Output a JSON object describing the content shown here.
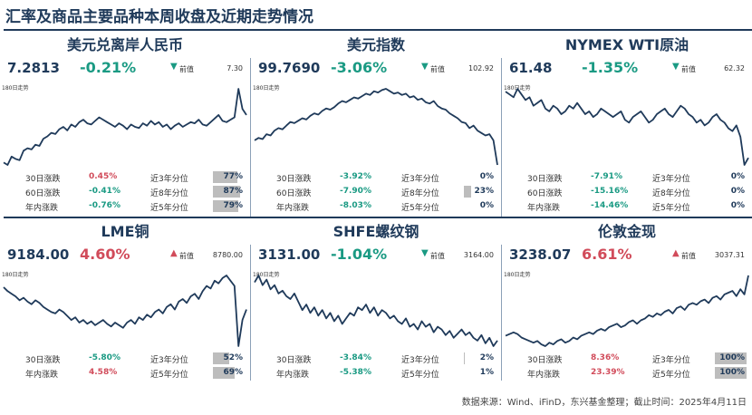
{
  "title": "汇率及商品主要品种本周收盘及近期走势情况",
  "source": "数据来源：Wind、iFinD，东兴基金整理；截止时间：2025年4月11日",
  "labels": {
    "prev": "前值",
    "chart_caption": "180日走势",
    "d30": "30日涨跌",
    "d60": "60日涨跌",
    "ytd": "年内涨跌",
    "p3y": "近3年分位",
    "p8y": "近8年分位",
    "p5y": "近5年分位"
  },
  "colors": {
    "up": "#d14b5a",
    "down": "#1a9a83",
    "line": "#1f3a5a",
    "bar": "#bdbdbd"
  },
  "panels": [
    {
      "name": "美元兑离岸人民币",
      "price": "7.2813",
      "change": "-0.21%",
      "direction": "down",
      "prev": "7.30",
      "stats": [
        {
          "label_key": "d30",
          "value": "0.45%",
          "dir": "up",
          "pct_label_key": "p3y",
          "pct": "77%",
          "fill": 0.77
        },
        {
          "label_key": "d60",
          "value": "-0.41%",
          "dir": "down",
          "pct_label_key": "p8y",
          "pct": "87%",
          "fill": 0.87
        },
        {
          "label_key": "ytd",
          "value": "-0.76%",
          "dir": "down",
          "pct_label_key": "p5y",
          "pct": "79%",
          "fill": 0.79
        }
      ]
    },
    {
      "name": "美元指数",
      "price": "99.7690",
      "change": "-3.06%",
      "direction": "down",
      "prev": "102.92",
      "stats": [
        {
          "label_key": "d30",
          "value": "-3.92%",
          "dir": "down",
          "pct_label_key": "p3y",
          "pct": "0%",
          "fill": 0
        },
        {
          "label_key": "d60",
          "value": "-7.90%",
          "dir": "down",
          "pct_label_key": "p8y",
          "pct": "23%",
          "fill": 0.23
        },
        {
          "label_key": "ytd",
          "value": "-8.03%",
          "dir": "down",
          "pct_label_key": "p5y",
          "pct": "0%",
          "fill": 0
        }
      ]
    },
    {
      "name": "NYMEX WTI原油",
      "price": "61.48",
      "change": "-1.35%",
      "direction": "down",
      "prev": "62.32",
      "stats": [
        {
          "label_key": "d30",
          "value": "-7.91%",
          "dir": "down",
          "pct_label_key": "p3y",
          "pct": "0%",
          "fill": 0
        },
        {
          "label_key": "d60",
          "value": "-15.16%",
          "dir": "down",
          "pct_label_key": "p8y",
          "pct": "0%",
          "fill": 0
        },
        {
          "label_key": "ytd",
          "value": "-14.46%",
          "dir": "down",
          "pct_label_key": "p5y",
          "pct": "0%",
          "fill": 0
        }
      ]
    },
    {
      "name": "LME铜",
      "price": "9184.00",
      "change": "4.60%",
      "direction": "up",
      "prev": "8780.00",
      "stats": [
        {
          "label_key": "d30",
          "value": "-5.80%",
          "dir": "down",
          "pct_label_key": "p3y",
          "pct": "52%",
          "fill": 0.52
        },
        {
          "label_key": "ytd",
          "value": "4.58%",
          "dir": "up",
          "pct_label_key": "p5y",
          "pct": "69%",
          "fill": 0.69
        }
      ]
    },
    {
      "name": "SHFE螺纹钢",
      "price": "3131.00",
      "change": "-1.04%",
      "direction": "down",
      "prev": "3164.00",
      "stats": [
        {
          "label_key": "d30",
          "value": "-3.84%",
          "dir": "down",
          "pct_label_key": "p3y",
          "pct": "2%",
          "fill": 0.02
        },
        {
          "label_key": "ytd",
          "value": "-5.38%",
          "dir": "down",
          "pct_label_key": "p5y",
          "pct": "1%",
          "fill": 0.01
        }
      ]
    },
    {
      "name": "伦敦金现",
      "price": "3238.07",
      "change": "6.61%",
      "direction": "up",
      "prev": "3037.31",
      "stats": [
        {
          "label_key": "d30",
          "value": "8.36%",
          "dir": "up",
          "pct_label_key": "p3y",
          "pct": "100%",
          "fill": 1.0
        },
        {
          "label_key": "ytd",
          "value": "23.39%",
          "dir": "up",
          "pct_label_key": "p5y",
          "pct": "100%",
          "fill": 1.0
        }
      ]
    }
  ],
  "chart_data": [
    {
      "type": "line",
      "series": [
        {
          "values": [
            30,
            28,
            35,
            33,
            32,
            40,
            42,
            41,
            45,
            44,
            50,
            52,
            55,
            54,
            58,
            60,
            57,
            62,
            60,
            64,
            66,
            63,
            62,
            65,
            68,
            66,
            64,
            62,
            60,
            63,
            61,
            58,
            62,
            60,
            59,
            63,
            61,
            65,
            62,
            64,
            60,
            62,
            58,
            61,
            63,
            60,
            62,
            64,
            63,
            66,
            62,
            61,
            64,
            67,
            70,
            65,
            64,
            66,
            68,
            92,
            75,
            70
          ]
        }
      ]
    },
    {
      "type": "line",
      "series": [
        {
          "values": [
            40,
            42,
            41,
            45,
            44,
            48,
            50,
            49,
            52,
            55,
            54,
            56,
            58,
            57,
            60,
            62,
            61,
            64,
            66,
            65,
            67,
            70,
            72,
            71,
            73,
            75,
            74,
            76,
            78,
            77,
            80,
            79,
            81,
            82,
            80,
            78,
            79,
            77,
            78,
            75,
            76,
            73,
            74,
            71,
            70,
            72,
            68,
            66,
            65,
            62,
            60,
            58,
            55,
            54,
            50,
            52,
            48,
            46,
            44,
            45,
            40,
            20
          ]
        }
      ]
    },
    {
      "type": "line",
      "series": [
        {
          "values": [
            72,
            70,
            68,
            74,
            70,
            66,
            68,
            62,
            64,
            66,
            60,
            58,
            62,
            60,
            56,
            58,
            62,
            60,
            64,
            60,
            56,
            58,
            54,
            56,
            60,
            58,
            56,
            54,
            56,
            58,
            52,
            50,
            54,
            56,
            58,
            54,
            50,
            52,
            56,
            58,
            60,
            56,
            54,
            58,
            62,
            60,
            56,
            54,
            50,
            52,
            48,
            50,
            54,
            56,
            52,
            50,
            46,
            44,
            48,
            40,
            20,
            25
          ]
        }
      ]
    },
    {
      "type": "line",
      "series": [
        {
          "values": [
            55,
            52,
            50,
            48,
            45,
            47,
            44,
            42,
            45,
            43,
            40,
            38,
            36,
            35,
            38,
            36,
            33,
            30,
            32,
            28,
            30,
            27,
            29,
            26,
            28,
            30,
            27,
            25,
            28,
            26,
            24,
            28,
            30,
            27,
            32,
            30,
            34,
            32,
            36,
            38,
            35,
            40,
            42,
            38,
            44,
            46,
            43,
            48,
            50,
            46,
            52,
            56,
            54,
            60,
            58,
            62,
            64,
            60,
            56,
            10,
            30,
            38
          ]
        }
      ]
    },
    {
      "type": "line",
      "series": [
        {
          "values": [
            60,
            65,
            58,
            62,
            55,
            58,
            52,
            54,
            50,
            48,
            52,
            46,
            40,
            44,
            38,
            42,
            36,
            40,
            34,
            38,
            32,
            36,
            30,
            34,
            38,
            36,
            42,
            40,
            44,
            38,
            42,
            36,
            40,
            38,
            34,
            36,
            32,
            30,
            34,
            28,
            30,
            26,
            32,
            28,
            30,
            24,
            28,
            26,
            22,
            25,
            20,
            23,
            26,
            22,
            24,
            20,
            18,
            22,
            16,
            20,
            14,
            18
          ]
        }
      ]
    },
    {
      "type": "line",
      "series": [
        {
          "values": [
            20,
            22,
            24,
            22,
            18,
            16,
            14,
            12,
            14,
            10,
            8,
            12,
            10,
            14,
            16,
            12,
            14,
            18,
            16,
            20,
            22,
            24,
            22,
            26,
            28,
            26,
            30,
            32,
            34,
            30,
            32,
            36,
            38,
            34,
            38,
            40,
            44,
            42,
            46,
            44,
            48,
            50,
            46,
            52,
            54,
            50,
            56,
            58,
            56,
            60,
            62,
            58,
            64,
            66,
            62,
            68,
            70,
            72,
            66,
            74,
            68,
            90
          ]
        }
      ]
    }
  ]
}
